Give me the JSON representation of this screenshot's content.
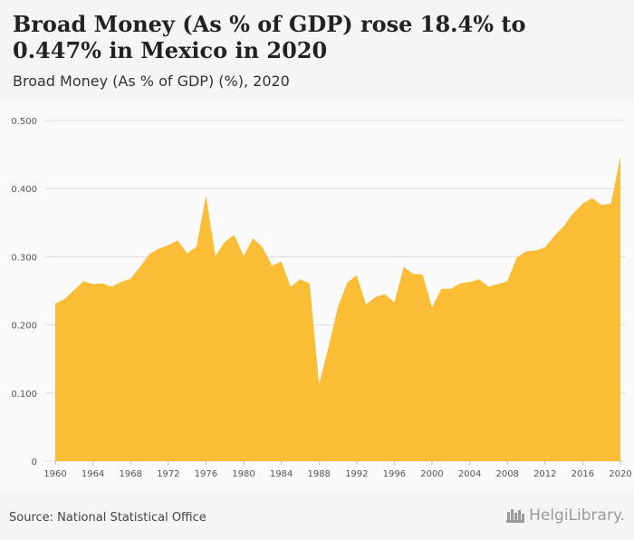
{
  "header": {
    "title": "Broad Money (As % of GDP) rose 18.4% to 0.447% in Mexico in 2020",
    "subtitle": "Broad Money (As % of GDP) (%), 2020"
  },
  "footer": {
    "source": "Source: National Statistical Office",
    "logo_text": "HelgiLibrary."
  },
  "colors": {
    "area_fill": "#fbbd36",
    "grid": "#dddddd",
    "axis_text": "#555555"
  },
  "chart_data": {
    "type": "area",
    "xlabel": "",
    "ylabel": "",
    "ylim": [
      0,
      0.5
    ],
    "xlim": [
      1960,
      2020
    ],
    "grid": true,
    "y_ticks": [
      "0",
      "0.100",
      "0.200",
      "0.300",
      "0.400",
      "0.500"
    ],
    "y_tick_values": [
      0,
      0.1,
      0.2,
      0.3,
      0.4,
      0.5
    ],
    "x_ticks": [
      "1960",
      "1964",
      "1968",
      "1972",
      "1976",
      "1980",
      "1984",
      "1988",
      "1992",
      "1996",
      "2000",
      "2004",
      "2008",
      "2012",
      "2016",
      "2020"
    ],
    "x_tick_values": [
      1960,
      1964,
      1968,
      1972,
      1976,
      1980,
      1984,
      1988,
      1992,
      1996,
      2000,
      2004,
      2008,
      2012,
      2016,
      2020
    ],
    "x": [
      1960,
      1961,
      1962,
      1963,
      1964,
      1965,
      1966,
      1967,
      1968,
      1969,
      1970,
      1971,
      1972,
      1973,
      1974,
      1975,
      1976,
      1977,
      1978,
      1979,
      1980,
      1981,
      1982,
      1983,
      1984,
      1985,
      1986,
      1987,
      1988,
      1989,
      1990,
      1991,
      1992,
      1993,
      1994,
      1995,
      1996,
      1997,
      1998,
      1999,
      2000,
      2001,
      2002,
      2003,
      2004,
      2005,
      2006,
      2007,
      2008,
      2009,
      2010,
      2011,
      2012,
      2013,
      2014,
      2015,
      2016,
      2017,
      2018,
      2019,
      2020
    ],
    "values": [
      0.231,
      0.238,
      0.251,
      0.264,
      0.26,
      0.261,
      0.256,
      0.263,
      0.268,
      0.285,
      0.304,
      0.312,
      0.317,
      0.324,
      0.305,
      0.315,
      0.39,
      0.301,
      0.322,
      0.332,
      0.301,
      0.327,
      0.314,
      0.287,
      0.293,
      0.256,
      0.267,
      0.261,
      0.113,
      0.167,
      0.226,
      0.262,
      0.273,
      0.23,
      0.241,
      0.245,
      0.233,
      0.285,
      0.275,
      0.274,
      0.226,
      0.253,
      0.253,
      0.261,
      0.263,
      0.267,
      0.256,
      0.26,
      0.264,
      0.299,
      0.308,
      0.309,
      0.314,
      0.331,
      0.345,
      0.364,
      0.378,
      0.386,
      0.376,
      0.378,
      0.447
    ]
  }
}
